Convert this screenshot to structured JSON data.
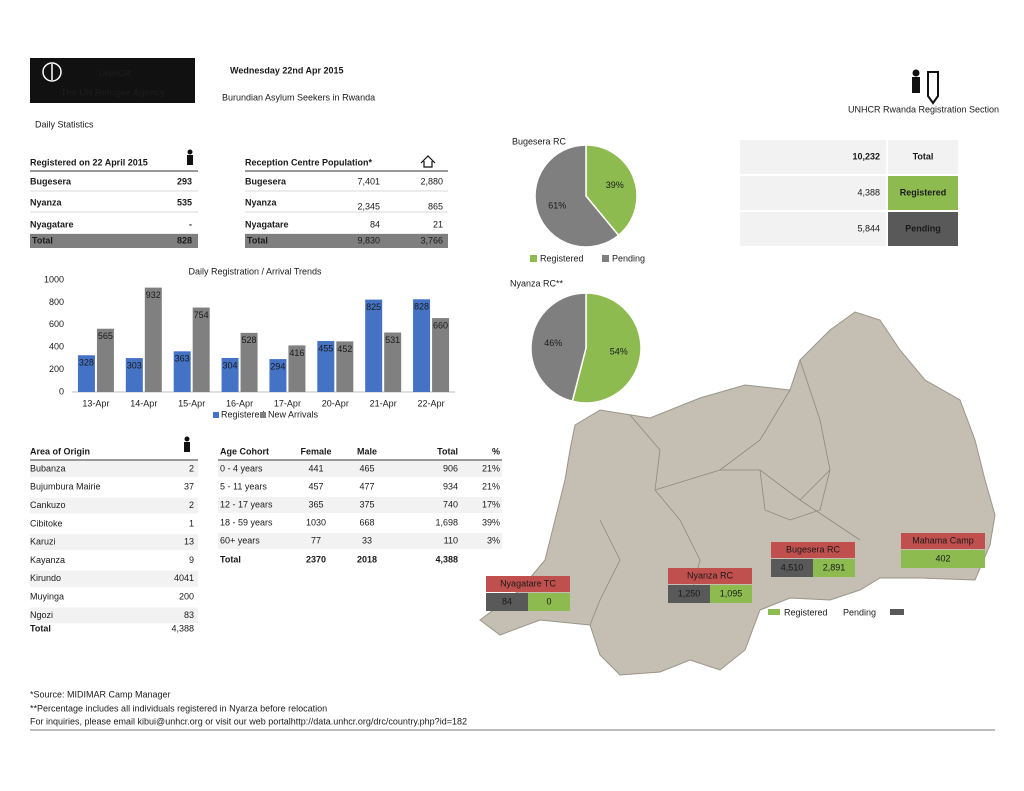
{
  "header": {
    "logo": "UNHCR",
    "logo_tagline": "The UN Refugee Agency",
    "date": "Wednesday 22nd Apr 2015",
    "title": "Burundian Asylum Seekers in Rwanda",
    "subtitle": "Daily Statistics",
    "section": "UNHCR Rwanda Registration Section"
  },
  "registered_table": {
    "header": "Registered on 22 April 2015",
    "rows": [
      [
        "Bugesera",
        "293"
      ],
      [
        "Nyanza",
        "535"
      ],
      [
        "Nyagatare",
        "-"
      ]
    ],
    "total": [
      "Total",
      "828"
    ]
  },
  "reception_table": {
    "header": "Reception Centre Population*",
    "rows": [
      [
        "Bugesera",
        "7,401",
        "2,880"
      ],
      [
        "Nyanza",
        "2,345",
        "865"
      ],
      [
        "Nyagatare",
        "84",
        "21"
      ]
    ],
    "total": [
      "Total",
      "9,830",
      "3,766"
    ]
  },
  "summary": [
    {
      "value": "10,232",
      "label": "Total"
    },
    {
      "value": "4,388",
      "label": "Registered"
    },
    {
      "value": "5,844",
      "label": "Pending"
    }
  ],
  "origin_table": {
    "header": "Area of Origin",
    "rows": [
      [
        "Bubanza",
        "2"
      ],
      [
        "Bujumbura Mairie",
        "37"
      ],
      [
        "Cankuzo",
        "2"
      ],
      [
        "Cibitoke",
        "1"
      ],
      [
        "Karuzi",
        "13"
      ],
      [
        "Kayanza",
        "9"
      ],
      [
        "Kirundo",
        "4041"
      ],
      [
        "Muyinga",
        "200"
      ],
      [
        "Ngozi",
        "83"
      ]
    ],
    "total": [
      "Total",
      "4,388"
    ]
  },
  "age_table": {
    "columns": [
      "Age Cohort",
      "Female",
      "Male",
      "Total",
      "%"
    ],
    "rows": [
      [
        "0 - 4 years",
        "441",
        "465",
        "906",
        "21%"
      ],
      [
        "5 - 11 years",
        "457",
        "477",
        "934",
        "21%"
      ],
      [
        "12 - 17 years",
        "365",
        "375",
        "740",
        "17%"
      ],
      [
        "18 - 59 years",
        "1030",
        "668",
        "1,698",
        "39%"
      ],
      [
        "60+ years",
        "77",
        "33",
        "110",
        "3%"
      ]
    ],
    "total": [
      "Total",
      "2370",
      "2018",
      "4,388"
    ]
  },
  "map": {
    "sites": [
      {
        "name": "Nyagatare TC",
        "values": [
          "84",
          "0"
        ]
      },
      {
        "name": "Nyanza RC",
        "values": [
          "1,250",
          "1,095"
        ]
      },
      {
        "name": "Bugesera RC",
        "values": [
          "4,510",
          "2,891"
        ]
      },
      {
        "name": "Mahama Camp",
        "values": [
          "402"
        ]
      }
    ],
    "legend": [
      "Registered",
      "Pending"
    ]
  },
  "footer": {
    "source": "*Source: MIDIMAR Camp Manager",
    "note": "**Percentage includes all individuals registered in Nyarza before relocation",
    "contact": "For inquiries, please email kibui@unhcr.org or visit our web portal ",
    "link": "http://data.unhcr.org/drc/country.php?id=182"
  },
  "chart_data": [
    {
      "type": "bar",
      "title": "Daily Registration / Arrival Trends",
      "categories": [
        "13-Apr",
        "14-Apr",
        "15-Apr",
        "16-Apr",
        "17-Apr",
        "20-Apr",
        "21-Apr",
        "22-Apr"
      ],
      "series": [
        {
          "name": "Registered",
          "color": "#4472c4",
          "values": [
            328,
            303,
            363,
            304,
            294,
            455,
            825,
            828
          ]
        },
        {
          "name": "New Arrivals",
          "color": "#808080",
          "values": [
            565,
            932,
            754,
            528,
            416,
            452,
            531,
            660
          ]
        }
      ],
      "ylim": [
        0,
        1000
      ],
      "yticks": [
        0,
        200,
        400,
        600,
        800,
        1000
      ],
      "grid": false,
      "legend": "bottom"
    },
    {
      "type": "pie",
      "title": "Bugesera RC",
      "categories": [
        "Registered",
        "Pending"
      ],
      "values": [
        39,
        61
      ],
      "value_labels": [
        "39%",
        "61%"
      ],
      "colors": [
        "#8dbb4f",
        "#7f7f7f"
      ],
      "legend": "bottom"
    },
    {
      "type": "pie",
      "title": "Nyanza RC**",
      "categories": [
        "Registered",
        "Pending"
      ],
      "values": [
        54,
        46
      ],
      "value_labels": [
        "54%",
        "46%"
      ],
      "colors": [
        "#8dbb4f",
        "#7f7f7f"
      ]
    }
  ]
}
